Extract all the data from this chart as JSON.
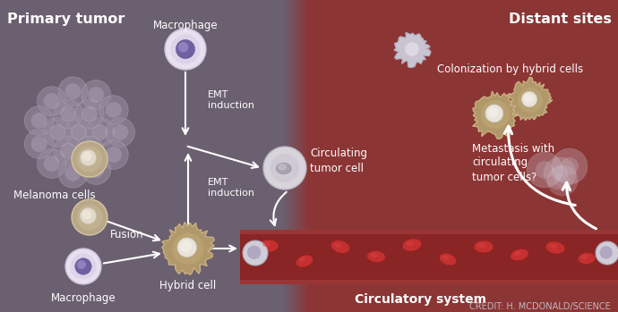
{
  "bg_left_color": "#6b6070",
  "bg_right_color": "#8b3535",
  "title_left": "Primary tumor",
  "title_right": "Distant sites",
  "label_melanoma": "Melanoma cells",
  "label_macrophage_top": "Macrophage",
  "label_macrophage_bottom": "Macrophage",
  "label_emt1": "EMT\ninduction",
  "label_emt2": "EMT\ninduction",
  "label_fusion": "Fusion",
  "label_hybrid": "Hybrid cell",
  "label_circulating": "Circulating\ntumor cell",
  "label_colonization": "Colonization by hybrid cells",
  "label_metastasis": "Metastasis with\ncirculating\ntumor cells?",
  "label_circulatory": "Circulatory system",
  "label_credit": "CREDIT: H. MCDONALD/SCIENCE",
  "fig_width": 6.9,
  "fig_height": 3.49,
  "dpi": 100
}
